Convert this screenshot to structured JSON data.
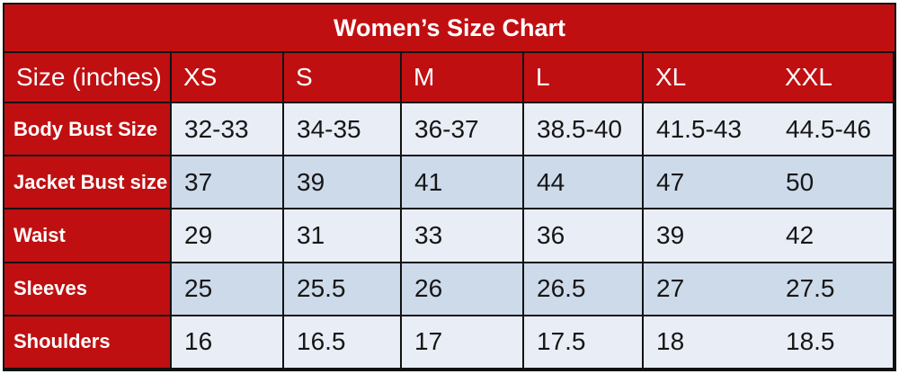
{
  "title": "Women’s Size Chart",
  "header": {
    "label": "Size (inches)",
    "sizes": [
      "XS",
      "S",
      "M",
      "L",
      "XL",
      "XXL"
    ]
  },
  "rows": [
    {
      "label": "Body Bust Size",
      "values": [
        "32-33",
        "34-35",
        "36-37",
        "38.5-40",
        "41.5-43",
        "44.5-46"
      ]
    },
    {
      "label": "Jacket Bust size",
      "values": [
        "37",
        "39",
        "41",
        "44",
        "47",
        "50"
      ]
    },
    {
      "label": "Waist",
      "values": [
        "29",
        "31",
        "33",
        "36",
        "39",
        "42"
      ]
    },
    {
      "label": "Sleeves",
      "values": [
        "25",
        "25.5",
        "26",
        "26.5",
        "27",
        "27.5"
      ]
    },
    {
      "label": "Shoulders",
      "values": [
        "16",
        "16.5",
        "17",
        "17.5",
        "18",
        "18.5"
      ]
    }
  ],
  "colors": {
    "header_red": "#c00f11",
    "row_light": "#e9eef6",
    "row_shaded": "#cddaea",
    "border": "#121212",
    "header_text": "#ffffff",
    "data_text": "#161616"
  },
  "chart_data": {
    "type": "table",
    "title": "Women’s Size Chart",
    "units": "inches",
    "columns": [
      "Size (inches)",
      "XS",
      "S",
      "M",
      "L",
      "XL",
      "XXL"
    ],
    "rows": [
      [
        "Body Bust Size",
        "32-33",
        "34-35",
        "36-37",
        "38.5-40",
        "41.5-43",
        "44.5-46"
      ],
      [
        "Jacket Bust size",
        "37",
        "39",
        "41",
        "44",
        "47",
        "50"
      ],
      [
        "Waist",
        "29",
        "31",
        "33",
        "36",
        "39",
        "42"
      ],
      [
        "Sleeves",
        "25",
        "25.5",
        "26",
        "26.5",
        "27",
        "27.5"
      ],
      [
        "Shoulders",
        "16",
        "16.5",
        "17",
        "17.5",
        "18",
        "18.5"
      ]
    ]
  }
}
